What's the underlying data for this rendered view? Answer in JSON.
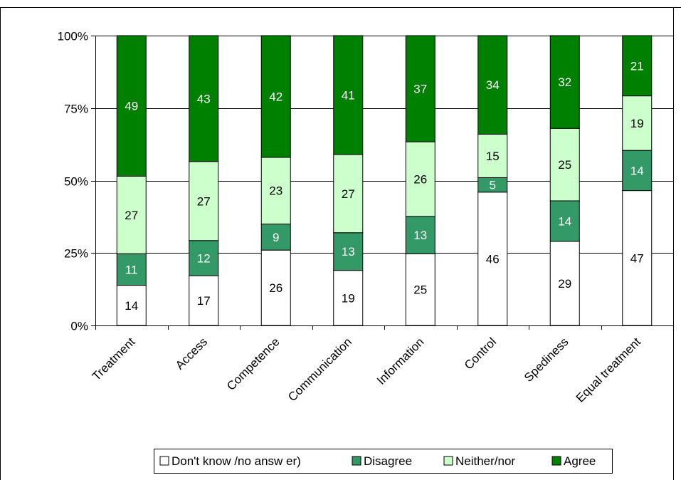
{
  "chart_data": {
    "type": "bar",
    "stacked": true,
    "percent": true,
    "categories": [
      "Treatment",
      "Access",
      "Competence",
      "Communication",
      "Information",
      "Control",
      "Spediness",
      "Equal treatment"
    ],
    "series": [
      {
        "name": "Don't know /no answ er)",
        "values": [
          14,
          17,
          26,
          19,
          25,
          46,
          29,
          47
        ],
        "color": "#ffffff",
        "label_color": "#000000"
      },
      {
        "name": "Disagree",
        "values": [
          11,
          12,
          9,
          13,
          13,
          5,
          14,
          14
        ],
        "color": "#339966",
        "label_color": "#ffffff"
      },
      {
        "name": "Neither/nor",
        "values": [
          27,
          27,
          23,
          27,
          26,
          15,
          25,
          19
        ],
        "color": "#ccffcc",
        "label_color": "#000000"
      },
      {
        "name": "Agree",
        "values": [
          49,
          43,
          42,
          41,
          37,
          34,
          32,
          21
        ],
        "color": "#008000",
        "label_color": "#ffffff"
      }
    ],
    "y_ticks": [
      "0%",
      "25%",
      "50%",
      "75%",
      "100%"
    ],
    "ylim": [
      0,
      100
    ],
    "grid": true,
    "legend_position": "bottom"
  }
}
